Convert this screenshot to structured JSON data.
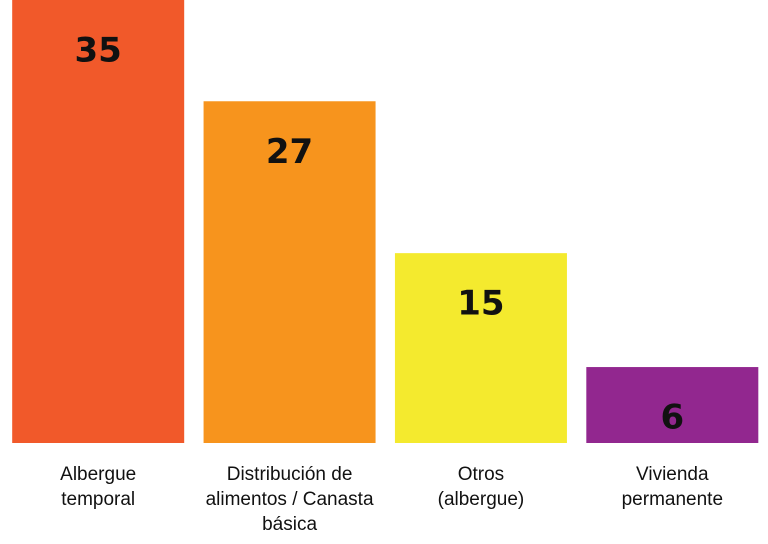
{
  "chart_data": {
    "type": "bar",
    "categories": [
      "Albergue temporal",
      "Distribución de alimentos / Canasta básica",
      "Otros (albergue)",
      "Vivienda permanente"
    ],
    "values": [
      35,
      27,
      15,
      6
    ],
    "colors": [
      "#f1592a",
      "#f7941d",
      "#f4ea2e",
      "#92278f"
    ],
    "ylim": [
      0,
      35
    ]
  }
}
